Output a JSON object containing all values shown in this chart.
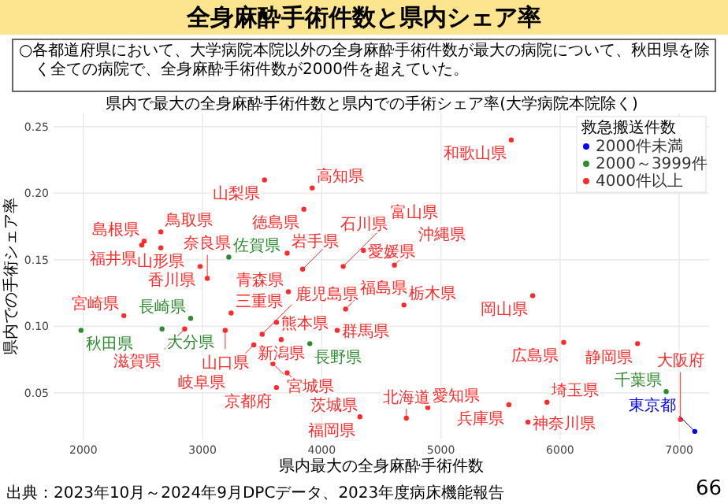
{
  "chart_data": {
    "type": "scatter",
    "title": "全身麻酔手術件数と県内シェア率",
    "subtitle": "○各都道府県において、大学病院本院以外の全身麻酔手術件数が最大の病院について、秋田県を除く全ての病院で、全身麻酔手術件数が2000件を超えていた。",
    "annotations": [
      "県内で最大の全身麻酔手術件数と県内での手術シェア率(大学病院本院除く)",
      "出典：2023年10月～2024年9月DPCデータ、2023年度病床機能報告",
      "66"
    ],
    "xlabel": "県内最大の全身麻酔手術件数",
    "ylabel": "県内での手術シェア率",
    "legend_title": "救急搬送件数",
    "legend": "top right",
    "grid": true,
    "marker": "circle",
    "xlim": [
      1750,
      7250
    ],
    "ylim": [
      0.015,
      0.26
    ],
    "xticks": [
      2000,
      3000,
      4000,
      5000,
      6000,
      7000
    ],
    "yticks": [
      {
        "value": 0.05,
        "label": "0.05"
      },
      {
        "value": 0.1,
        "label": "0.10"
      },
      {
        "value": 0.15,
        "label": "0.15"
      },
      {
        "value": 0.2,
        "label": "0.20"
      },
      {
        "value": 0.25,
        "label": "0.25"
      }
    ],
    "series": [
      {
        "name": "2000件未満",
        "color": "#0000ff",
        "x": [
          7130
        ],
        "values": [
          0.021
        ],
        "value_labels": [
          "東京都"
        ]
      },
      {
        "name": "2000～3999件",
        "color": "#2e8b2e",
        "x": [
          1980,
          2660,
          2900,
          3220,
          3900,
          6890
        ],
        "values": [
          0.097,
          0.098,
          0.106,
          0.152,
          0.087,
          0.051
        ],
        "value_labels": [
          "秋田県",
          "大分県",
          "長崎県",
          "佐賀県",
          "長野県",
          "千葉県"
        ]
      },
      {
        "name": "4000件以上",
        "color": "#ff2a2a",
        "x": [
          2340,
          2850,
          3240,
          3190,
          3500,
          3430,
          3590,
          3620,
          3710,
          3620,
          3660,
          3720,
          2980,
          3040,
          4130,
          4200,
          4690,
          5770,
          6030,
          6650,
          4890,
          5570,
          5890,
          5730,
          4710,
          4320,
          7010,
          3520,
          3920,
          3850,
          2650,
          2510,
          2490,
          2650,
          3710,
          3840,
          5590,
          4350,
          4180,
          4610
        ],
        "values": [
          0.108,
          0.098,
          0.11,
          0.097,
          0.094,
          0.086,
          0.072,
          0.054,
          0.065,
          0.103,
          0.09,
          0.126,
          0.145,
          0.136,
          0.097,
          0.113,
          0.116,
          0.123,
          0.088,
          0.087,
          0.039,
          0.041,
          0.043,
          0.028,
          0.031,
          0.032,
          0.03,
          0.21,
          0.204,
          0.188,
          0.171,
          0.164,
          0.161,
          0.159,
          0.155,
          0.143,
          0.24,
          0.157,
          0.145,
          0.146
        ],
        "value_labels": [
          "宮崎県",
          "滋賀県",
          "三重県",
          "山口県",
          "鹿児島県",
          "岐阜県",
          "宮城県",
          "京都府",
          "茨城県",
          "熊本県",
          "新潟県",
          "青森県",
          "香川県",
          "奈良県",
          "群馬県",
          "福島県",
          "栃木県",
          "岡山県",
          "広島県",
          "静岡県",
          "愛知県",
          "兵庫県",
          "埼玉県",
          "神奈川県",
          "北海道",
          "福岡県",
          "大阪府",
          "山梨県",
          "高知県",
          "徳島県",
          "鳥取県",
          "島根県",
          "福井県",
          "山形県",
          "岩手県",
          "石川県",
          "和歌山県",
          "愛媛県",
          "富山県",
          "沖縄県"
        ]
      }
    ]
  }
}
